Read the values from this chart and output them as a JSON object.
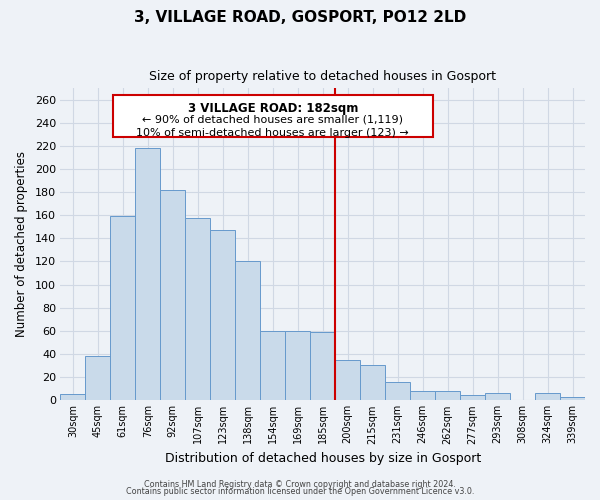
{
  "title": "3, VILLAGE ROAD, GOSPORT, PO12 2LD",
  "subtitle": "Size of property relative to detached houses in Gosport",
  "xlabel": "Distribution of detached houses by size in Gosport",
  "ylabel": "Number of detached properties",
  "bar_labels": [
    "30sqm",
    "45sqm",
    "61sqm",
    "76sqm",
    "92sqm",
    "107sqm",
    "123sqm",
    "138sqm",
    "154sqm",
    "169sqm",
    "185sqm",
    "200sqm",
    "215sqm",
    "231sqm",
    "246sqm",
    "262sqm",
    "277sqm",
    "293sqm",
    "308sqm",
    "324sqm",
    "339sqm"
  ],
  "bar_values": [
    5,
    38,
    159,
    218,
    182,
    158,
    147,
    120,
    60,
    60,
    59,
    35,
    30,
    16,
    8,
    8,
    4,
    6,
    0,
    6,
    3
  ],
  "bar_color": "#c9daea",
  "bar_edge_color": "#6699cc",
  "ylim": [
    0,
    270
  ],
  "yticks": [
    0,
    20,
    40,
    60,
    80,
    100,
    120,
    140,
    160,
    180,
    200,
    220,
    240,
    260
  ],
  "vline_color": "#cc0000",
  "annotation_title": "3 VILLAGE ROAD: 182sqm",
  "annotation_line1": "← 90% of detached houses are smaller (1,119)",
  "annotation_line2": "10% of semi-detached houses are larger (123) →",
  "annotation_box_color": "#ffffff",
  "annotation_box_edge": "#cc0000",
  "footnote1": "Contains HM Land Registry data © Crown copyright and database right 2024.",
  "footnote2": "Contains public sector information licensed under the Open Government Licence v3.0.",
  "background_color": "#eef2f7",
  "grid_color": "#d0d8e4"
}
